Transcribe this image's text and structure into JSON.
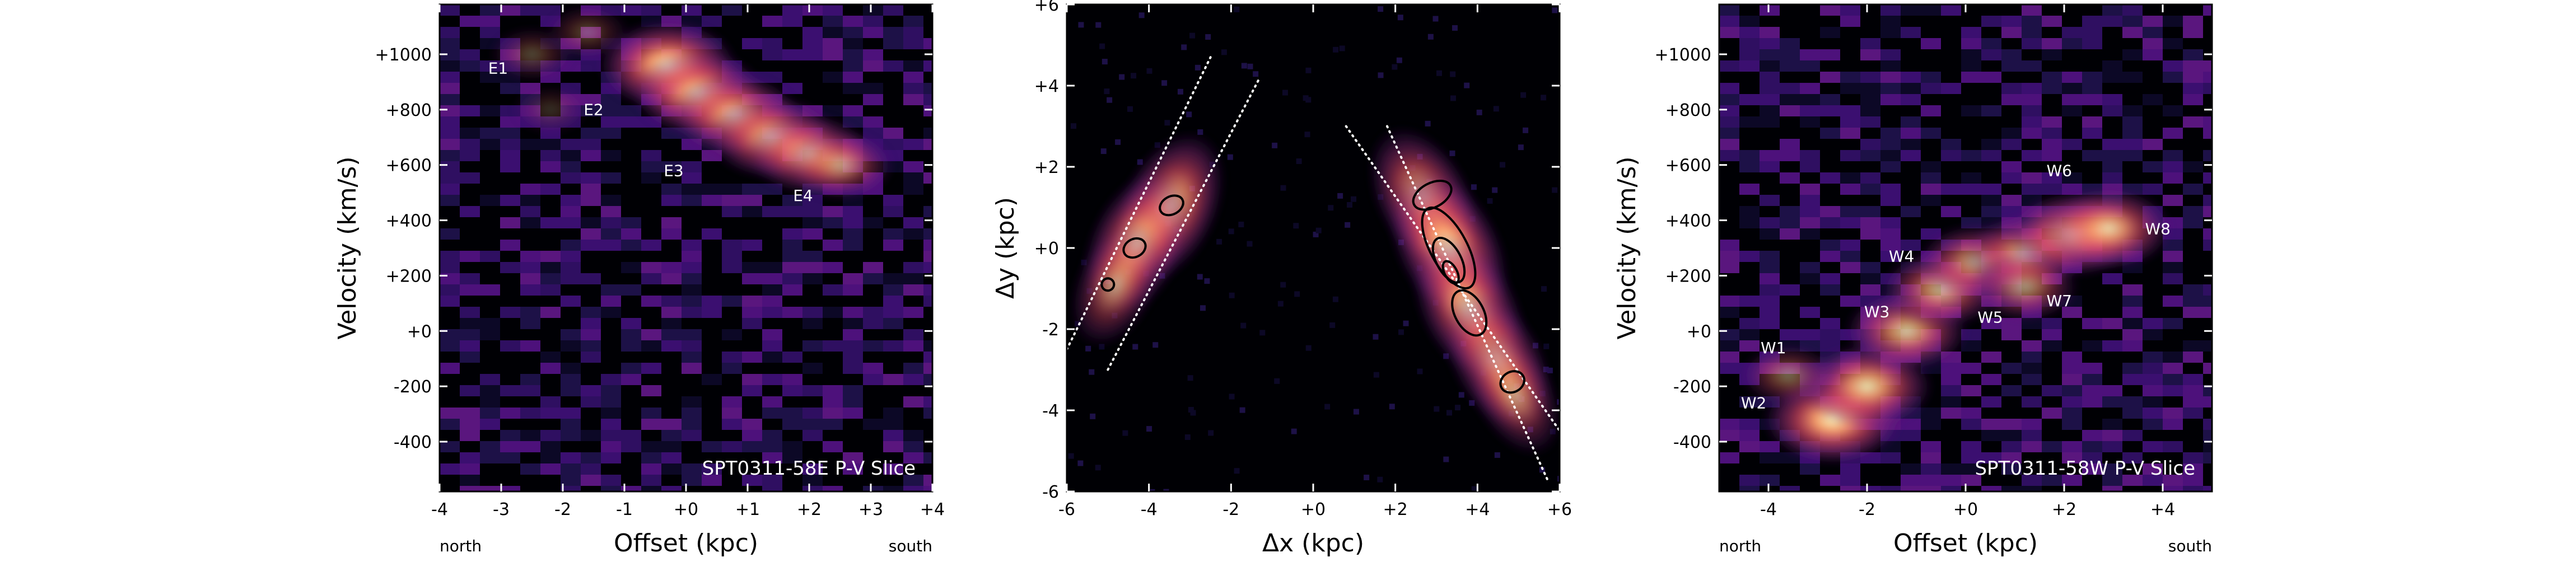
{
  "chart_data": [
    {
      "type": "heatmap",
      "panel": "left",
      "xlabel": "Offset (kpc)",
      "ylabel": "Velocity (km/s)",
      "xlim": [
        -4,
        4
      ],
      "ylim": [
        -580,
        1180
      ],
      "x_ticks": [
        -4,
        -3,
        -2,
        -1,
        0,
        1,
        2,
        3,
        4
      ],
      "x_tick_labels": [
        "-4",
        "-3",
        "-2",
        "-1",
        "+0",
        "+1",
        "+2",
        "+3",
        "+4"
      ],
      "y_ticks": [
        -400,
        -200,
        0,
        200,
        400,
        600,
        800,
        1000
      ],
      "y_tick_labels": [
        "-400",
        "-200",
        "+0",
        "+200",
        "+400",
        "+600",
        "+800",
        "+1000"
      ],
      "corner_left": "north",
      "corner_right": "south",
      "inset_label": "SPT0311-58E P-V Slice",
      "annotations": [
        {
          "text": "E1",
          "x": -3.05,
          "y": 930
        },
        {
          "text": "E2",
          "x": -1.5,
          "y": 780
        },
        {
          "text": "E3",
          "x": -0.2,
          "y": 560
        },
        {
          "text": "E4",
          "x": 1.9,
          "y": 470
        }
      ],
      "emission": [
        {
          "x": -0.3,
          "y": 960,
          "amp": 1.0
        },
        {
          "x": 0.2,
          "y": 860,
          "amp": 0.9
        },
        {
          "x": 0.8,
          "y": 780,
          "amp": 0.85
        },
        {
          "x": 1.4,
          "y": 700,
          "amp": 0.85
        },
        {
          "x": 2.0,
          "y": 640,
          "amp": 0.8
        },
        {
          "x": 2.5,
          "y": 600,
          "amp": 0.6
        },
        {
          "x": -2.5,
          "y": 1000,
          "amp": 0.3
        },
        {
          "x": -1.6,
          "y": 1080,
          "amp": 0.3
        },
        {
          "x": -2.2,
          "y": 800,
          "amp": 0.2
        }
      ]
    },
    {
      "type": "heatmap",
      "panel": "center",
      "xlabel": "Δx (kpc)",
      "ylabel": "Δy (kpc)",
      "xlim": [
        -6,
        6
      ],
      "ylim": [
        -6,
        6
      ],
      "x_ticks": [
        -6,
        -4,
        -2,
        0,
        2,
        4,
        6
      ],
      "x_tick_labels": [
        "-6",
        "-4",
        "-2",
        "+0",
        "+2",
        "+4",
        "+6"
      ],
      "y_ticks": [
        -6,
        -4,
        -2,
        0,
        2,
        4,
        6
      ],
      "y_tick_labels": [
        "-6",
        "-4",
        "-2",
        "+0",
        "+2",
        "+4",
        "+6"
      ],
      "slit_lines": [
        {
          "x1": -6,
          "y1": -2.5,
          "x2": -2.5,
          "y2": 4.7
        },
        {
          "x1": -5.0,
          "y1": -3.0,
          "x2": -1.3,
          "y2": 4.2
        },
        {
          "x1": 0.8,
          "y1": 3.0,
          "x2": 6.0,
          "y2": -4.5
        },
        {
          "x1": 1.8,
          "y1": 3.0,
          "x2": 5.7,
          "y2": -5.7
        }
      ],
      "emission": [
        {
          "x": -3.5,
          "y": 1.0,
          "amp": 0.9
        },
        {
          "x": -4.3,
          "y": 0.1,
          "amp": 0.85
        },
        {
          "x": -4.8,
          "y": -0.9,
          "amp": 0.6
        },
        {
          "x": 2.7,
          "y": 1.2,
          "amp": 0.85
        },
        {
          "x": 3.3,
          "y": 0.0,
          "amp": 1.0
        },
        {
          "x": 3.8,
          "y": -1.5,
          "amp": 0.9
        },
        {
          "x": 4.5,
          "y": -2.8,
          "amp": 0.8
        },
        {
          "x": 4.9,
          "y": -3.6,
          "amp": 0.6
        }
      ],
      "contours": [
        {
          "cx": -3.45,
          "cy": 1.05,
          "rx": 0.3,
          "ry": 0.22
        },
        {
          "cx": -4.35,
          "cy": 0.0,
          "rx": 0.28,
          "ry": 0.22
        },
        {
          "cx": -5.0,
          "cy": -0.9,
          "rx": 0.15,
          "ry": 0.15
        },
        {
          "cx": 2.9,
          "cy": 1.3,
          "rx": 0.5,
          "ry": 0.3
        },
        {
          "cx": 3.3,
          "cy": 0.0,
          "rx": 0.45,
          "ry": 1.1
        },
        {
          "cx": 3.3,
          "cy": -0.3,
          "rx": 0.3,
          "ry": 0.6
        },
        {
          "cx": 3.35,
          "cy": -0.6,
          "rx": 0.15,
          "ry": 0.3
        },
        {
          "cx": 3.8,
          "cy": -1.6,
          "rx": 0.35,
          "ry": 0.6
        },
        {
          "cx": 4.85,
          "cy": -3.3,
          "rx": 0.3,
          "ry": 0.25
        }
      ]
    },
    {
      "type": "heatmap",
      "panel": "right",
      "xlabel": "Offset (kpc)",
      "ylabel": "Velocity (km/s)",
      "xlim": [
        -5,
        5
      ],
      "ylim": [
        -580,
        1180
      ],
      "x_ticks": [
        -4,
        -2,
        0,
        2,
        4
      ],
      "x_tick_labels": [
        "-4",
        "-2",
        "+0",
        "+2",
        "+4"
      ],
      "y_ticks": [
        -400,
        -200,
        0,
        200,
        400,
        600,
        800,
        1000
      ],
      "y_tick_labels": [
        "-400",
        "-200",
        "+0",
        "+200",
        "+400",
        "+600",
        "+800",
        "+1000"
      ],
      "corner_left": "north",
      "corner_right": "south",
      "inset_label": "SPT0311-58W P-V Slice",
      "annotations": [
        {
          "text": "W1",
          "x": -3.9,
          "y": -80
        },
        {
          "text": "W2",
          "x": -4.3,
          "y": -280
        },
        {
          "text": "W3",
          "x": -1.8,
          "y": 50
        },
        {
          "text": "W4",
          "x": -1.3,
          "y": 250
        },
        {
          "text": "W5",
          "x": 0.5,
          "y": 30
        },
        {
          "text": "W6",
          "x": 1.9,
          "y": 560
        },
        {
          "text": "W7",
          "x": 1.9,
          "y": 90
        },
        {
          "text": "W8",
          "x": 3.9,
          "y": 350
        }
      ],
      "emission": [
        {
          "x": -2.7,
          "y": -320,
          "amp": 1.0
        },
        {
          "x": -2.0,
          "y": -200,
          "amp": 0.9
        },
        {
          "x": -1.2,
          "y": 0,
          "amp": 0.8
        },
        {
          "x": -0.5,
          "y": 150,
          "amp": 0.75
        },
        {
          "x": 0.2,
          "y": 250,
          "amp": 0.7
        },
        {
          "x": 1.2,
          "y": 280,
          "amp": 0.75
        },
        {
          "x": 2.2,
          "y": 350,
          "amp": 0.9
        },
        {
          "x": 2.9,
          "y": 370,
          "amp": 0.85
        },
        {
          "x": 1.2,
          "y": 160,
          "amp": 0.6
        },
        {
          "x": -3.6,
          "y": -160,
          "amp": 0.45
        }
      ]
    }
  ]
}
